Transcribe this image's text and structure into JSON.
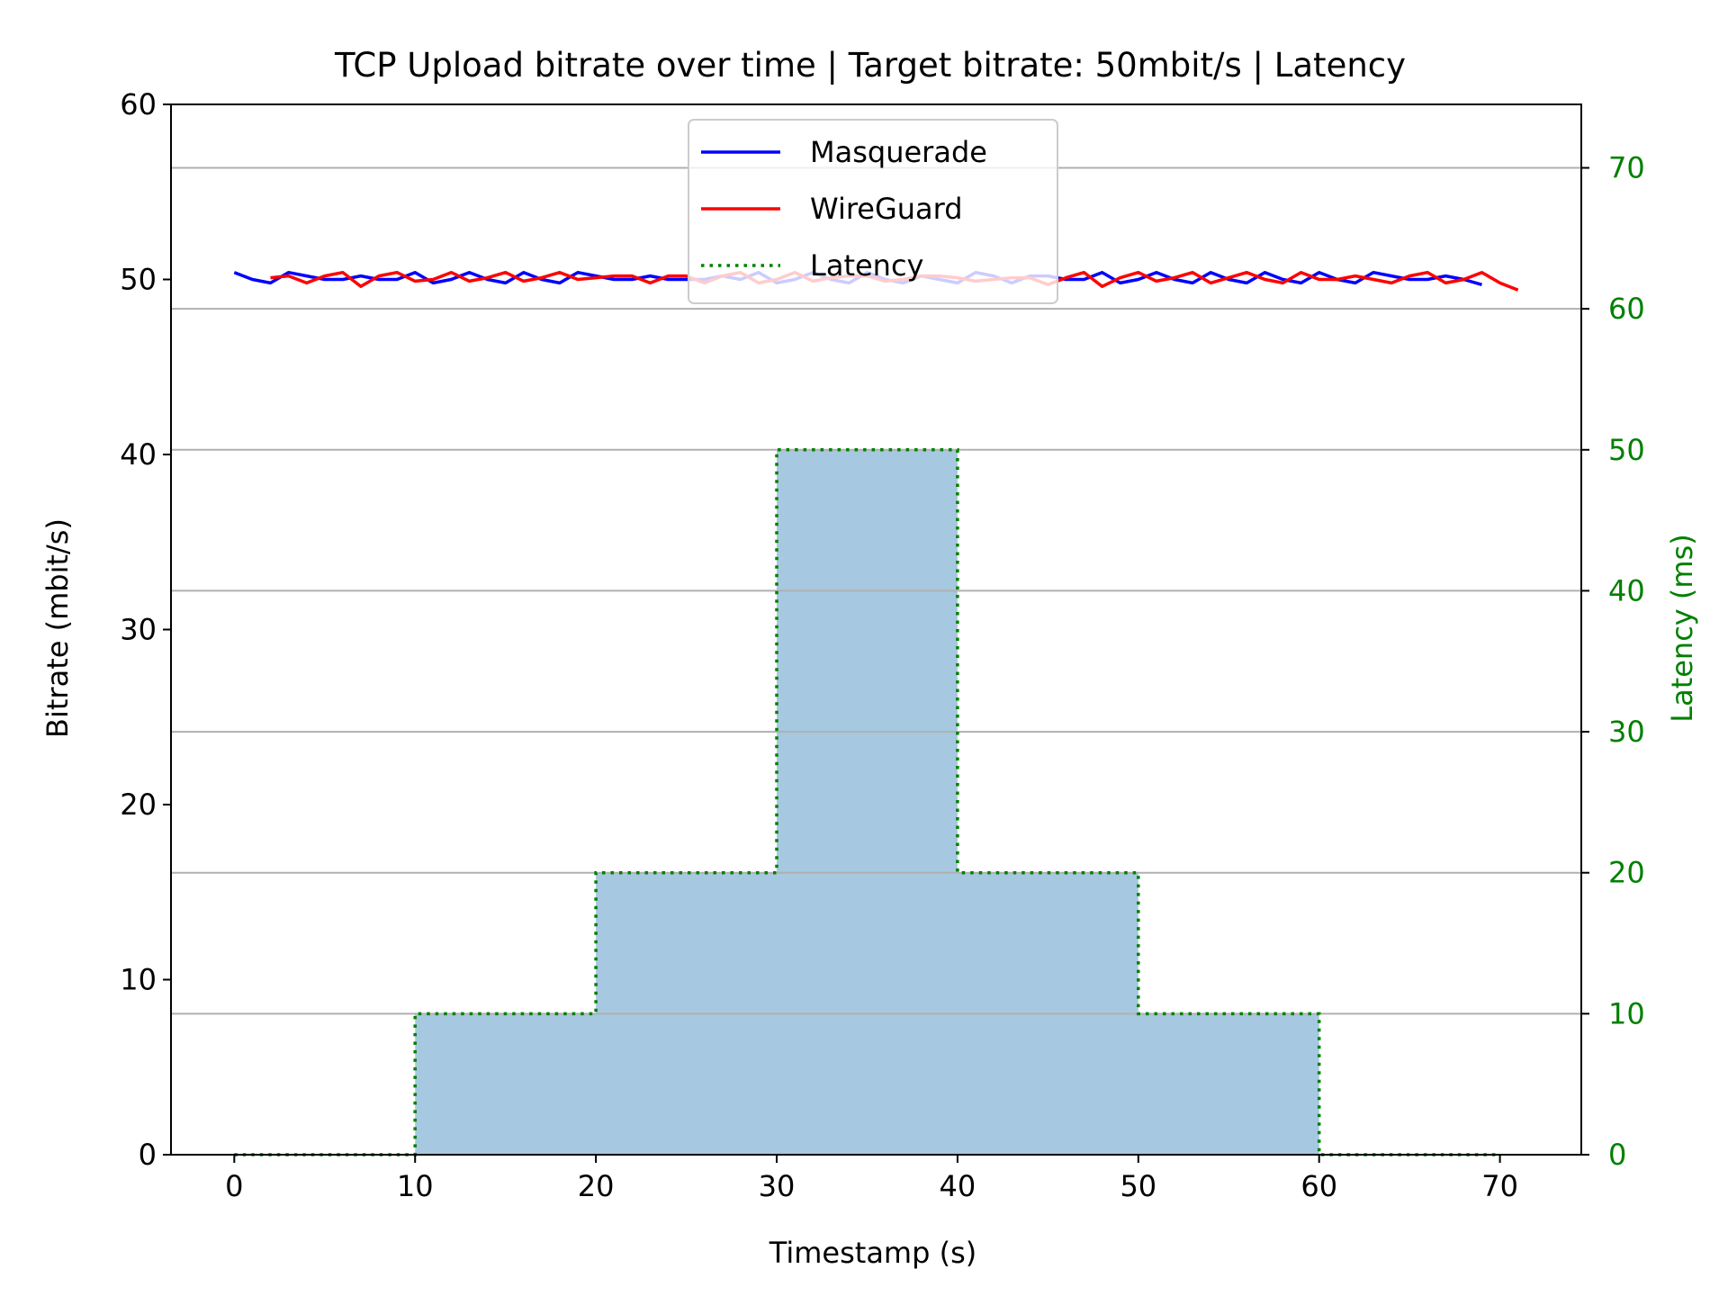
{
  "chart_data": {
    "type": "line",
    "title": "TCP Upload bitrate over time | Target bitrate: 50mbit/s | Latency",
    "xlabel": "Timestamp (s)",
    "ylabel": "Bitrate (mbit/s)",
    "y2label": "Latency (ms)",
    "xlim": [
      -3.5,
      74.5
    ],
    "ylim": [
      0,
      60
    ],
    "y2lim": [
      0,
      74.5
    ],
    "xticks": [
      0,
      10,
      20,
      30,
      40,
      50,
      60,
      70
    ],
    "yticks": [
      0,
      10,
      20,
      30,
      40,
      50,
      60
    ],
    "y2ticks": [
      0,
      10,
      20,
      30,
      40,
      50,
      60,
      70
    ],
    "grid": "horizontal on right axis",
    "legend_position": "upper center",
    "colors": {
      "masquerade": "#0000ff",
      "wireguard": "#ff0000",
      "latency": "#008000",
      "latency_fill": "#a6c8e0",
      "grid": "#b0b0b0",
      "right_axis": "#008000"
    },
    "series": [
      {
        "name": "Masquerade",
        "axis": "left",
        "style": "solid",
        "x": [
          0,
          1,
          2,
          3,
          4,
          5,
          6,
          7,
          8,
          9,
          10,
          11,
          12,
          13,
          14,
          15,
          16,
          17,
          18,
          19,
          20,
          21,
          22,
          23,
          24,
          25,
          26,
          27,
          28,
          29,
          30,
          31,
          32,
          33,
          34,
          35,
          36,
          37,
          38,
          39,
          40,
          41,
          42,
          43,
          44,
          45,
          46,
          47,
          48,
          49,
          50,
          51,
          52,
          53,
          54,
          55,
          56,
          57,
          58,
          59,
          60,
          61,
          62,
          63,
          64,
          65,
          66,
          67,
          68,
          69
        ],
        "values": [
          50.4,
          50.0,
          49.8,
          50.4,
          50.2,
          50.0,
          50.0,
          50.2,
          50.0,
          50.0,
          50.4,
          49.8,
          50.0,
          50.4,
          50.0,
          49.8,
          50.4,
          50.0,
          49.8,
          50.4,
          50.2,
          50.0,
          50.0,
          50.2,
          50.0,
          50.0,
          50.0,
          50.2,
          50.0,
          50.4,
          49.8,
          50.0,
          50.4,
          50.0,
          49.8,
          50.4,
          50.0,
          49.8,
          50.2,
          50.0,
          49.8,
          50.4,
          50.2,
          49.8,
          50.2,
          50.2,
          50.0,
          50.0,
          50.4,
          49.8,
          50.0,
          50.4,
          50.0,
          49.8,
          50.4,
          50.0,
          49.8,
          50.4,
          50.0,
          49.8,
          50.4,
          50.0,
          49.8,
          50.4,
          50.2,
          50.0,
          50.0,
          50.2,
          50.0,
          49.7
        ]
      },
      {
        "name": "WireGuard",
        "axis": "left",
        "style": "solid",
        "x": [
          2,
          3,
          4,
          5,
          6,
          7,
          8,
          9,
          10,
          11,
          12,
          13,
          14,
          15,
          16,
          17,
          18,
          19,
          20,
          21,
          22,
          23,
          24,
          25,
          26,
          27,
          28,
          29,
          30,
          31,
          32,
          33,
          34,
          35,
          36,
          37,
          38,
          39,
          40,
          41,
          42,
          43,
          44,
          45,
          46,
          47,
          48,
          49,
          50,
          51,
          52,
          53,
          54,
          55,
          56,
          57,
          58,
          59,
          60,
          61,
          62,
          63,
          64,
          65,
          66,
          67,
          68,
          69,
          70,
          71
        ],
        "values": [
          50.1,
          50.2,
          49.8,
          50.2,
          50.4,
          49.6,
          50.2,
          50.4,
          49.9,
          50.0,
          50.4,
          49.9,
          50.1,
          50.4,
          49.9,
          50.1,
          50.4,
          50.0,
          50.1,
          50.2,
          50.2,
          49.8,
          50.2,
          50.2,
          49.8,
          50.2,
          50.4,
          49.8,
          50.0,
          50.4,
          49.9,
          50.1,
          50.2,
          50.2,
          49.9,
          50.0,
          50.2,
          50.2,
          50.1,
          49.9,
          50.0,
          50.1,
          50.1,
          49.7,
          50.1,
          50.4,
          49.6,
          50.1,
          50.4,
          49.9,
          50.1,
          50.4,
          49.8,
          50.1,
          50.4,
          50.0,
          49.8,
          50.4,
          50.0,
          50.0,
          50.2,
          50.0,
          49.8,
          50.2,
          50.4,
          49.8,
          50.0,
          50.4,
          49.8,
          49.4
        ]
      },
      {
        "name": "Latency",
        "axis": "right",
        "style": "dotted-step",
        "x": [
          0,
          10,
          20,
          30,
          40,
          50,
          60,
          70
        ],
        "values": [
          0,
          10,
          20,
          50,
          20,
          10,
          0,
          0
        ]
      }
    ]
  }
}
